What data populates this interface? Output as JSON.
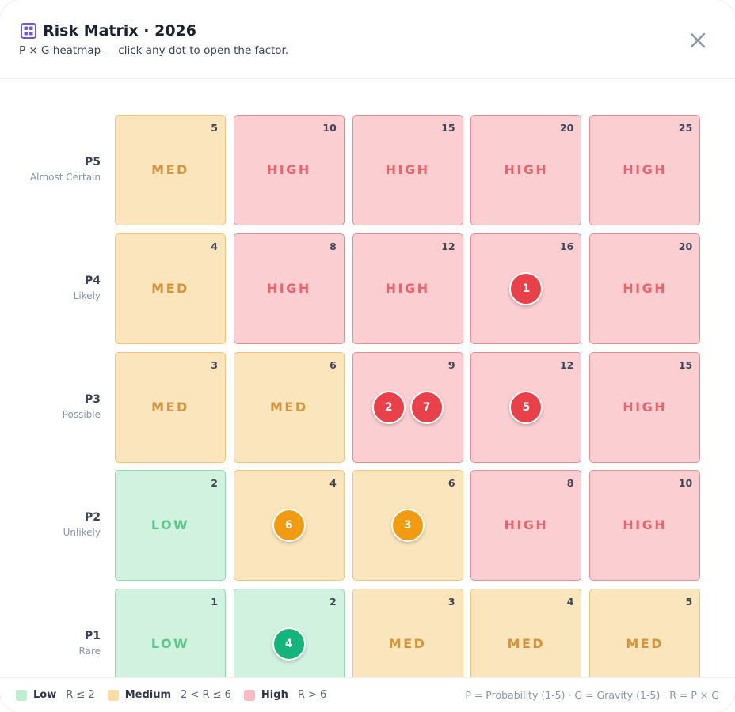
{
  "header": {
    "title": "Risk Matrix · 2026",
    "subtitle": "P × G heatmap — click any dot to open the factor.",
    "title_icon": "grid-icon",
    "close_icon": "close-icon"
  },
  "colors": {
    "accent": "#6b5bd6",
    "low_bg": "#d1f2df",
    "med_bg": "#fbe5bd",
    "high_bg": "#fbcfd1",
    "dot_red": "#e8414a",
    "dot_orange": "#f19c10",
    "dot_green": "#13b57d"
  },
  "rows": [
    {
      "code": "P5",
      "name": "Almost Certain",
      "cells": [
        {
          "score": "5",
          "level": "MED",
          "kind": "med",
          "dots": []
        },
        {
          "score": "10",
          "level": "HIGH",
          "kind": "high",
          "dots": []
        },
        {
          "score": "15",
          "level": "HIGH",
          "kind": "high",
          "dots": []
        },
        {
          "score": "20",
          "level": "HIGH",
          "kind": "high",
          "dots": []
        },
        {
          "score": "25",
          "level": "HIGH",
          "kind": "high",
          "dots": []
        }
      ]
    },
    {
      "code": "P4",
      "name": "Likely",
      "cells": [
        {
          "score": "4",
          "level": "MED",
          "kind": "med",
          "dots": []
        },
        {
          "score": "8",
          "level": "HIGH",
          "kind": "high",
          "dots": []
        },
        {
          "score": "12",
          "level": "HIGH",
          "kind": "high",
          "dots": []
        },
        {
          "score": "16",
          "level": "",
          "kind": "high",
          "dots": [
            {
              "label": "1",
              "color": "#e8414a"
            }
          ]
        },
        {
          "score": "20",
          "level": "HIGH",
          "kind": "high",
          "dots": []
        }
      ]
    },
    {
      "code": "P3",
      "name": "Possible",
      "cells": [
        {
          "score": "3",
          "level": "MED",
          "kind": "med",
          "dots": []
        },
        {
          "score": "6",
          "level": "MED",
          "kind": "med",
          "dots": []
        },
        {
          "score": "9",
          "level": "",
          "kind": "high",
          "dots": [
            {
              "label": "2",
              "color": "#e8414a"
            },
            {
              "label": "7",
              "color": "#e8414a"
            }
          ]
        },
        {
          "score": "12",
          "level": "",
          "kind": "high",
          "dots": [
            {
              "label": "5",
              "color": "#e8414a"
            }
          ]
        },
        {
          "score": "15",
          "level": "HIGH",
          "kind": "high",
          "dots": []
        }
      ]
    },
    {
      "code": "P2",
      "name": "Unlikely",
      "cells": [
        {
          "score": "2",
          "level": "LOW",
          "kind": "low",
          "dots": []
        },
        {
          "score": "4",
          "level": "",
          "kind": "med",
          "dots": [
            {
              "label": "6",
              "color": "#f19c10"
            }
          ]
        },
        {
          "score": "6",
          "level": "",
          "kind": "med",
          "dots": [
            {
              "label": "3",
              "color": "#f19c10"
            }
          ]
        },
        {
          "score": "8",
          "level": "HIGH",
          "kind": "high",
          "dots": []
        },
        {
          "score": "10",
          "level": "HIGH",
          "kind": "high",
          "dots": []
        }
      ]
    },
    {
      "code": "P1",
      "name": "Rare",
      "cells": [
        {
          "score": "1",
          "level": "LOW",
          "kind": "low",
          "dots": []
        },
        {
          "score": "2",
          "level": "",
          "kind": "low",
          "dots": [
            {
              "label": "4",
              "color": "#13b57d"
            }
          ]
        },
        {
          "score": "3",
          "level": "MED",
          "kind": "med",
          "dots": []
        },
        {
          "score": "4",
          "level": "MED",
          "kind": "med",
          "dots": []
        },
        {
          "score": "5",
          "level": "MED",
          "kind": "med",
          "dots": []
        }
      ]
    }
  ],
  "legend": {
    "items": [
      {
        "name": "Low",
        "rule": "R ≤ 2",
        "color": "#bdeecf"
      },
      {
        "name": "Medium",
        "rule": "2 < R ≤ 6",
        "color": "#fbdca3"
      },
      {
        "name": "High",
        "rule": "R > 6",
        "color": "#f9bcc0"
      }
    ],
    "formula": "P = Probability (1-5) · G = Gravity (1-5) · R = P × G"
  }
}
